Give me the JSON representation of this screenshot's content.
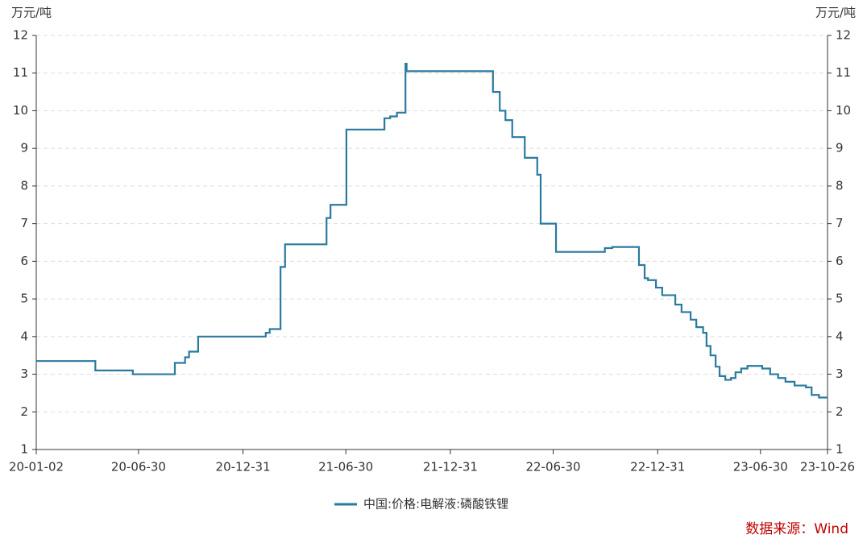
{
  "chart_data": {
    "type": "line",
    "step": "after",
    "ylabel": "万元/吨",
    "y2label": "万元/吨",
    "source": "数据来源：Wind",
    "series": [
      {
        "name": "中国:价格:电解液:磷酸铁锂",
        "color": "#2a7aa0",
        "x": [
          "20-01-02",
          "20-04-15",
          "20-06-20",
          "20-09-02",
          "20-09-20",
          "20-09-27",
          "20-10-13",
          "21-02-09",
          "21-02-16",
          "21-03-07",
          "21-03-15",
          "21-05-27",
          "21-06-03",
          "21-07-01",
          "21-09-06",
          "21-09-16",
          "21-09-28",
          "21-10-13",
          "21-10-15",
          "22-03-16",
          "22-03-28",
          "22-04-07",
          "22-04-19",
          "22-05-11",
          "22-06-02",
          "22-06-08",
          "22-07-05",
          "22-09-29",
          "22-10-12",
          "22-11-28",
          "22-12-08",
          "22-12-14",
          "22-12-28",
          "23-01-08",
          "23-01-31",
          "23-02-11",
          "23-02-27",
          "23-03-09",
          "23-03-21",
          "23-03-27",
          "23-04-03",
          "23-04-12",
          "23-04-19",
          "23-04-29",
          "23-05-09",
          "23-05-17",
          "23-05-27",
          "23-06-07",
          "23-07-03",
          "23-07-17",
          "23-07-31",
          "23-08-13",
          "23-08-29",
          "23-09-18",
          "23-09-28",
          "23-10-11",
          "23-10-26"
        ],
        "values": [
          3.35,
          3.1,
          3.0,
          3.3,
          3.45,
          3.6,
          4.0,
          4.1,
          4.2,
          5.85,
          6.45,
          7.15,
          7.5,
          9.5,
          9.8,
          9.85,
          9.95,
          11.25,
          11.05,
          10.5,
          10.0,
          9.75,
          9.3,
          8.75,
          8.3,
          7.0,
          6.25,
          6.35,
          6.38,
          5.9,
          5.55,
          5.5,
          5.3,
          5.1,
          4.85,
          4.65,
          4.45,
          4.25,
          4.1,
          3.75,
          3.5,
          3.2,
          2.95,
          2.85,
          2.9,
          3.05,
          3.15,
          3.22,
          3.15,
          3.0,
          2.9,
          2.8,
          2.7,
          2.65,
          2.45,
          2.38,
          2.38
        ]
      }
    ],
    "xlim": [
      "20-01-02",
      "23-10-26"
    ],
    "xticks": [
      "20-01-02",
      "20-06-30",
      "20-12-31",
      "21-06-30",
      "21-12-31",
      "22-06-30",
      "22-12-31",
      "23-06-30",
      "23-10-26"
    ],
    "ylim": [
      1,
      12
    ],
    "yticks": [
      1,
      2,
      3,
      4,
      5,
      6,
      7,
      8,
      9,
      10,
      11,
      12
    ],
    "y2lim": [
      1,
      12
    ],
    "y2ticks": [
      1,
      2,
      3,
      4,
      5,
      6,
      7,
      8,
      9,
      10,
      11,
      12
    ],
    "grid": true
  }
}
